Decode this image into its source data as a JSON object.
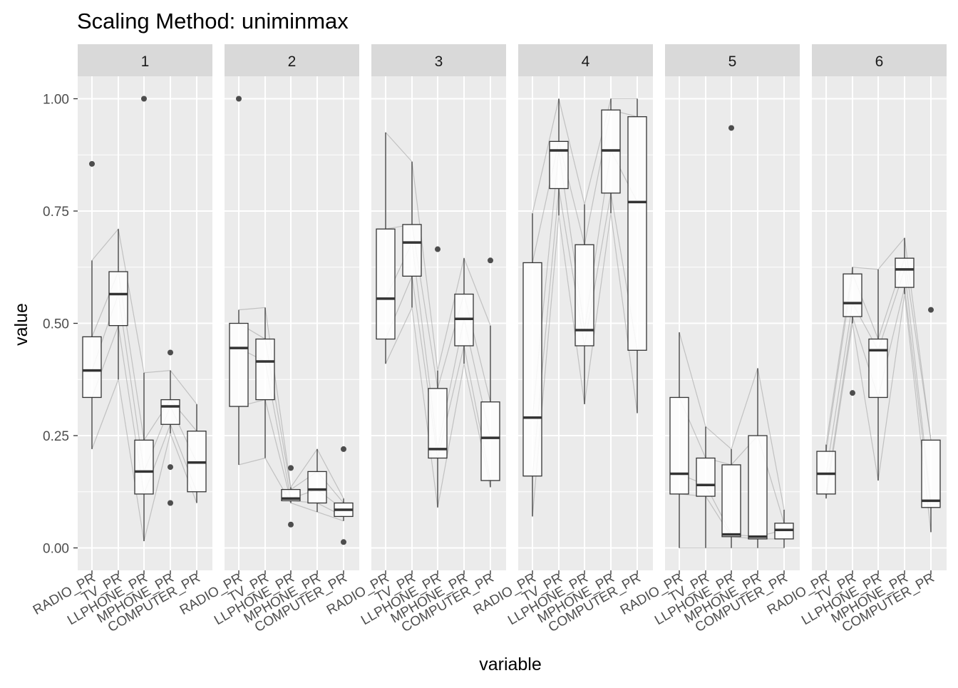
{
  "chart_data": {
    "type": "boxplot",
    "title": "Scaling Method: uniminmax",
    "xlabel": "variable",
    "ylabel": "value",
    "ylim": [
      -0.05,
      1.05
    ],
    "y_ticks": [
      0.0,
      0.25,
      0.5,
      0.75,
      1.0
    ],
    "y_tick_labels": [
      "0.00",
      "0.25",
      "0.50",
      "0.75",
      "1.00"
    ],
    "categories": [
      "RADIO_PR",
      "TV_PR",
      "LLPHONE_PR",
      "MPHONE_PR",
      "COMPUTER_PR"
    ],
    "grid": true,
    "panels": [
      {
        "label": "1",
        "boxes": [
          {
            "q1": 0.335,
            "median": 0.395,
            "q3": 0.47,
            "whisker_low": 0.22,
            "whisker_high": 0.64,
            "outliers": [
              0.855
            ]
          },
          {
            "q1": 0.495,
            "median": 0.565,
            "q3": 0.615,
            "whisker_low": 0.375,
            "whisker_high": 0.71,
            "outliers": []
          },
          {
            "q1": 0.12,
            "median": 0.17,
            "q3": 0.24,
            "whisker_low": 0.015,
            "whisker_high": 0.39,
            "outliers": [
              1.0
            ]
          },
          {
            "q1": 0.275,
            "median": 0.315,
            "q3": 0.33,
            "whisker_low": 0.255,
            "whisker_high": 0.395,
            "outliers": [
              0.435,
              0.18,
              0.1
            ]
          },
          {
            "q1": 0.125,
            "median": 0.19,
            "q3": 0.26,
            "whisker_low": 0.1,
            "whisker_high": 0.32,
            "outliers": []
          }
        ]
      },
      {
        "label": "2",
        "boxes": [
          {
            "q1": 0.315,
            "median": 0.445,
            "q3": 0.5,
            "whisker_low": 0.185,
            "whisker_high": 0.53,
            "outliers": [
              1.0
            ]
          },
          {
            "q1": 0.33,
            "median": 0.415,
            "q3": 0.465,
            "whisker_low": 0.2,
            "whisker_high": 0.535,
            "outliers": []
          },
          {
            "q1": 0.105,
            "median": 0.11,
            "q3": 0.13,
            "whisker_low": 0.1,
            "whisker_high": 0.135,
            "outliers": [
              0.178,
              0.052
            ]
          },
          {
            "q1": 0.1,
            "median": 0.13,
            "q3": 0.17,
            "whisker_low": 0.08,
            "whisker_high": 0.22,
            "outliers": []
          },
          {
            "q1": 0.07,
            "median": 0.085,
            "q3": 0.1,
            "whisker_low": 0.06,
            "whisker_high": 0.11,
            "outliers": [
              0.22,
              0.013
            ]
          }
        ]
      },
      {
        "label": "3",
        "boxes": [
          {
            "q1": 0.465,
            "median": 0.555,
            "q3": 0.71,
            "whisker_low": 0.41,
            "whisker_high": 0.925,
            "outliers": []
          },
          {
            "q1": 0.605,
            "median": 0.68,
            "q3": 0.72,
            "whisker_low": 0.535,
            "whisker_high": 0.86,
            "outliers": []
          },
          {
            "q1": 0.2,
            "median": 0.22,
            "q3": 0.355,
            "whisker_low": 0.09,
            "whisker_high": 0.395,
            "outliers": [
              0.665
            ]
          },
          {
            "q1": 0.45,
            "median": 0.51,
            "q3": 0.565,
            "whisker_low": 0.41,
            "whisker_high": 0.645,
            "outliers": []
          },
          {
            "q1": 0.15,
            "median": 0.245,
            "q3": 0.325,
            "whisker_low": 0.135,
            "whisker_high": 0.495,
            "outliers": [
              0.64
            ]
          }
        ]
      },
      {
        "label": "4",
        "boxes": [
          {
            "q1": 0.16,
            "median": 0.29,
            "q3": 0.635,
            "whisker_low": 0.07,
            "whisker_high": 0.745,
            "outliers": []
          },
          {
            "q1": 0.8,
            "median": 0.885,
            "q3": 0.905,
            "whisker_low": 0.74,
            "whisker_high": 1.0,
            "outliers": []
          },
          {
            "q1": 0.45,
            "median": 0.485,
            "q3": 0.675,
            "whisker_low": 0.32,
            "whisker_high": 0.765,
            "outliers": []
          },
          {
            "q1": 0.79,
            "median": 0.885,
            "q3": 0.975,
            "whisker_low": 0.745,
            "whisker_high": 1.0,
            "outliers": []
          },
          {
            "q1": 0.44,
            "median": 0.77,
            "q3": 0.96,
            "whisker_low": 0.3,
            "whisker_high": 1.0,
            "outliers": []
          }
        ]
      },
      {
        "label": "5",
        "boxes": [
          {
            "q1": 0.12,
            "median": 0.165,
            "q3": 0.335,
            "whisker_low": 0.0,
            "whisker_high": 0.48,
            "outliers": []
          },
          {
            "q1": 0.115,
            "median": 0.14,
            "q3": 0.2,
            "whisker_low": 0.0,
            "whisker_high": 0.27,
            "outliers": []
          },
          {
            "q1": 0.025,
            "median": 0.03,
            "q3": 0.185,
            "whisker_low": 0.0,
            "whisker_high": 0.22,
            "outliers": [
              0.935
            ]
          },
          {
            "q1": 0.02,
            "median": 0.025,
            "q3": 0.25,
            "whisker_low": 0.0,
            "whisker_high": 0.4,
            "outliers": []
          },
          {
            "q1": 0.02,
            "median": 0.04,
            "q3": 0.055,
            "whisker_low": 0.0,
            "whisker_high": 0.085,
            "outliers": []
          }
        ]
      },
      {
        "label": "6",
        "boxes": [
          {
            "q1": 0.12,
            "median": 0.165,
            "q3": 0.215,
            "whisker_low": 0.11,
            "whisker_high": 0.23,
            "outliers": []
          },
          {
            "q1": 0.515,
            "median": 0.545,
            "q3": 0.61,
            "whisker_low": 0.5,
            "whisker_high": 0.625,
            "outliers": [
              0.345
            ]
          },
          {
            "q1": 0.335,
            "median": 0.44,
            "q3": 0.465,
            "whisker_low": 0.15,
            "whisker_high": 0.62,
            "outliers": []
          },
          {
            "q1": 0.58,
            "median": 0.62,
            "q3": 0.645,
            "whisker_low": 0.565,
            "whisker_high": 0.69,
            "outliers": []
          },
          {
            "q1": 0.09,
            "median": 0.105,
            "q3": 0.24,
            "whisker_low": 0.035,
            "whisker_high": 0.24,
            "outliers": [
              0.53
            ]
          }
        ]
      }
    ],
    "colors": {
      "panel_background": "#EBEBEB",
      "grid_major": "#FFFFFF",
      "strip_background": "#D9D9D9",
      "box_fill": "#FFFFFF",
      "box_stroke": "#333333",
      "median": "#333333",
      "trace_lines": "#9E9E9E",
      "outlier": "#4D4D4D",
      "axis_text": "#4D4D4D",
      "title_text": "#000000"
    }
  }
}
